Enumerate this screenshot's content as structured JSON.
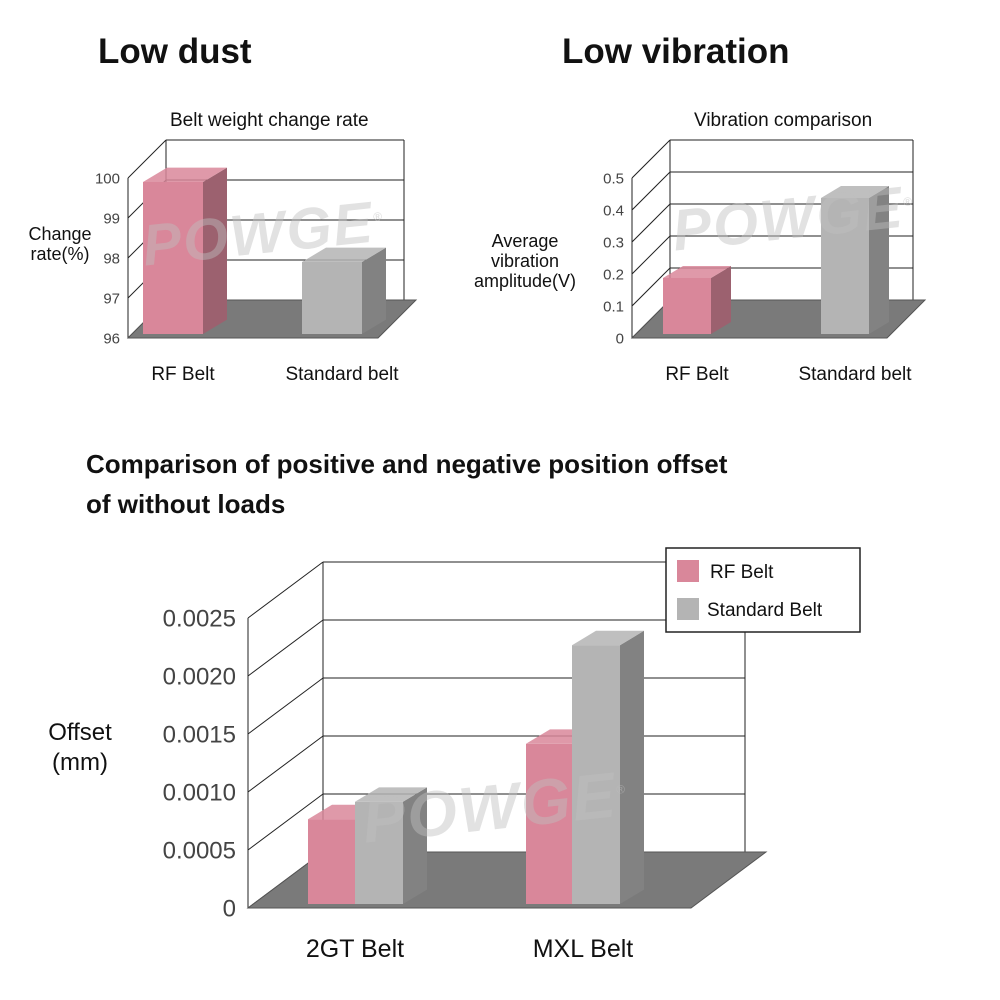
{
  "headings": {
    "left": "Low dust",
    "right": "Low vibration",
    "bottom_line1": "Comparison of positive and negative position offset",
    "bottom_line2": "of without loads"
  },
  "watermark": {
    "text": "POWGE",
    "mark": "®",
    "color": "#bdbdbd"
  },
  "colors": {
    "rf_belt": "#d9879a",
    "standard_belt": "#b4b4b4",
    "floor": "#7a7a7a"
  },
  "chart_data": [
    {
      "type": "bar",
      "title": "Belt weight change rate",
      "ylabel_line1": "Change",
      "ylabel_line2": "rate(%)",
      "ylim": [
        96,
        100
      ],
      "yticks": [
        "96",
        "97",
        "98",
        "99",
        "100"
      ],
      "categories": [
        "RF Belt",
        "Standard belt"
      ],
      "values": [
        100,
        98
      ],
      "grid": true,
      "legend": "none"
    },
    {
      "type": "bar",
      "title": "Vibration comparison",
      "ylabel_line1": "Average",
      "ylabel_line2": "vibration",
      "ylabel_line3": "amplitude(V)",
      "ylim": [
        0,
        0.5
      ],
      "yticks": [
        "0",
        "0.1",
        "0.2",
        "0.3",
        "0.4",
        "0.5"
      ],
      "categories": [
        "RF Belt",
        "Standard belt"
      ],
      "values": [
        0.2,
        0.45
      ],
      "grid": true,
      "legend": "none"
    },
    {
      "type": "bar",
      "ylabel_line1": "Offset",
      "ylabel_line2": "(mm)",
      "ylim": [
        0,
        0.0025
      ],
      "yticks": [
        "0",
        "0.0005",
        "0.0010",
        "0.0015",
        "0.0020",
        "0.0025"
      ],
      "categories": [
        "2GT Belt",
        "MXL Belt"
      ],
      "series": [
        {
          "name": "RF Belt",
          "values": [
            0.0008,
            0.00145
          ]
        },
        {
          "name": "Standard Belt",
          "values": [
            0.00095,
            0.0023
          ]
        }
      ],
      "grid": true,
      "legend": "top-right"
    }
  ]
}
